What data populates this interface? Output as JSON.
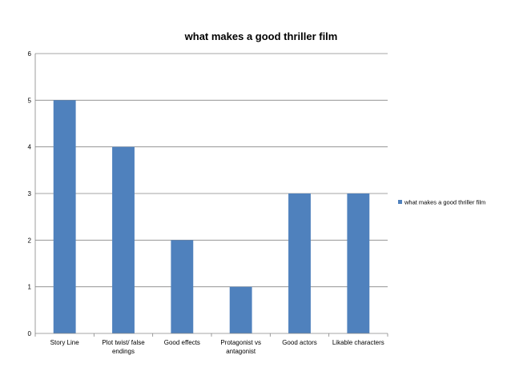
{
  "chart_data": {
    "type": "bar",
    "title": "what makes a good thriller film",
    "xlabel": "",
    "ylabel": "",
    "categories": [
      [
        "Story Line"
      ],
      [
        "Plot twist/ false",
        "endings"
      ],
      [
        "Good effects"
      ],
      [
        "Protagonist vs",
        "antagonist"
      ],
      [
        "Good actors"
      ],
      [
        "Likable characters"
      ]
    ],
    "series": [
      {
        "name": "what makes a good thriller film",
        "values": [
          5,
          4,
          2,
          1,
          3,
          3
        ]
      }
    ],
    "ylim": [
      0,
      6
    ],
    "yticks": [
      0,
      1,
      2,
      3,
      4,
      5,
      6
    ],
    "grid": true,
    "legend_position": "right"
  },
  "colors": {
    "bar": "#4f81bd",
    "grid": "#868686",
    "axis": "#868686",
    "background": "#ffffff"
  }
}
